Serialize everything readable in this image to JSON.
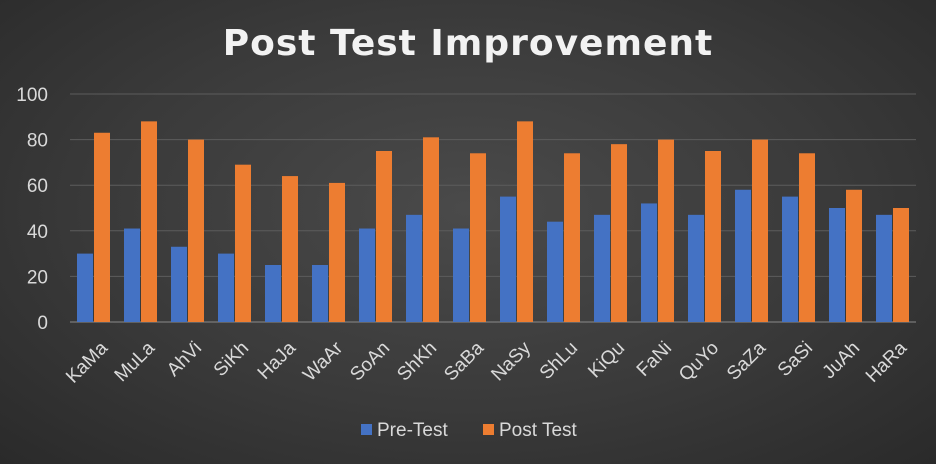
{
  "chart_data": {
    "type": "bar",
    "title": "Post Test Improvement",
    "xlabel": "",
    "ylabel": "",
    "ylim": [
      0,
      100
    ],
    "yticks": [
      "0",
      "20",
      "40",
      "60",
      "80",
      "100"
    ],
    "grid": true,
    "legend_position": "bottom",
    "categories": [
      "KaMa",
      "MuLa",
      "AhVi",
      "SiKh",
      "HaJa",
      "WaAr",
      "SoAn",
      "ShKh",
      "SaBa",
      "NaSy",
      "ShLu",
      "KiQu",
      "FaNi",
      "QuYo",
      "SaZa",
      "SaSi",
      "JuAh",
      "HaRa"
    ],
    "series": [
      {
        "name": "Pre-Test",
        "color": "#4472c4",
        "values": [
          30,
          41,
          33,
          30,
          25,
          25,
          41,
          47,
          41,
          55,
          44,
          47,
          52,
          47,
          58,
          55,
          50,
          47
        ]
      },
      {
        "name": "Post Test",
        "color": "#ed7d31",
        "values": [
          83,
          88,
          80,
          69,
          64,
          61,
          75,
          81,
          74,
          88,
          74,
          78,
          80,
          75,
          80,
          74,
          58,
          50
        ]
      }
    ]
  }
}
